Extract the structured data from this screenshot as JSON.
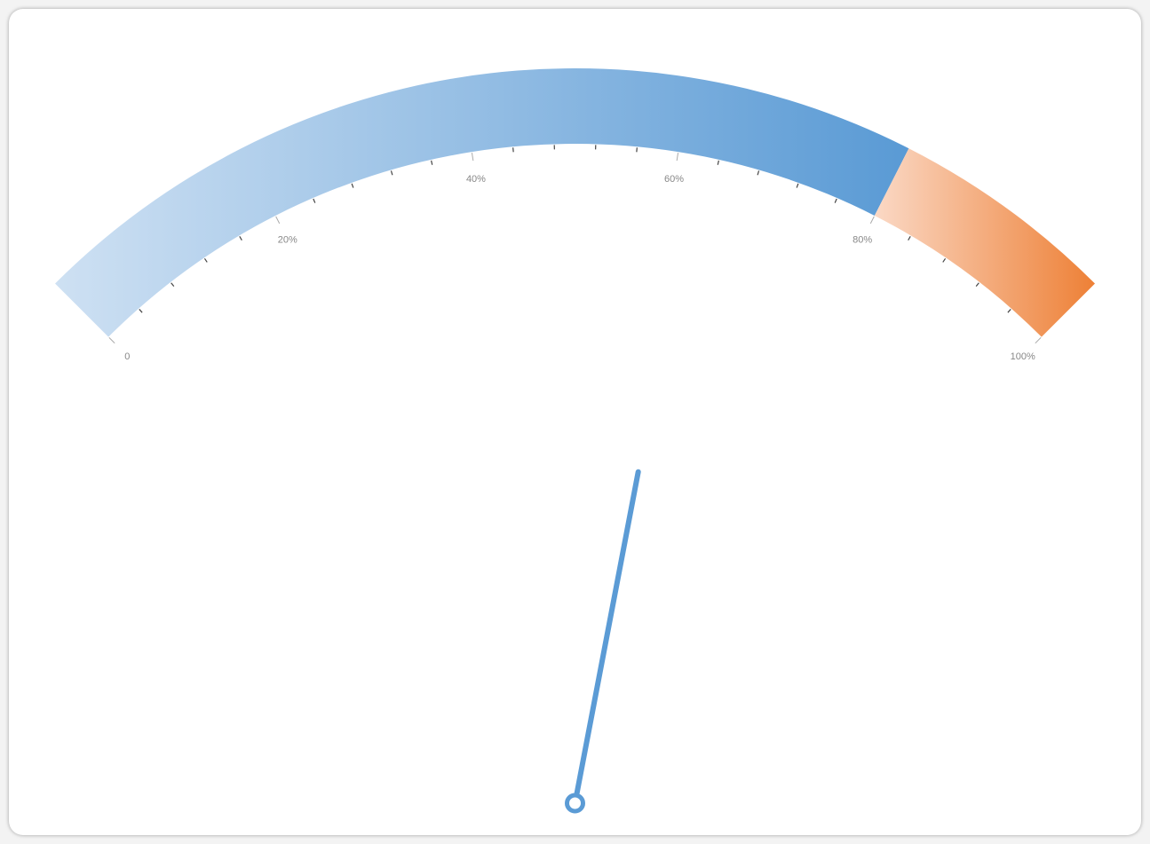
{
  "chart_data": {
    "type": "gauge",
    "min": 0,
    "max": 100,
    "value": 62,
    "ticks": [
      {
        "value": 0,
        "label": "0"
      },
      {
        "value": 20,
        "label": "20%"
      },
      {
        "value": 40,
        "label": "40%"
      },
      {
        "value": 60,
        "label": "60%"
      },
      {
        "value": 80,
        "label": "80%"
      },
      {
        "value": 100,
        "label": "100%"
      }
    ],
    "minor_ticks_per_interval": 4,
    "bands": [
      {
        "from": 0,
        "to": 80,
        "color_start": "#cfe1f3",
        "color_end": "#5b9bd5"
      },
      {
        "from": 80,
        "to": 100,
        "color_start": "#fbdccb",
        "color_end": "#ed7d31"
      }
    ],
    "needle_color": "#5b9bd5",
    "tick_color": "#444444",
    "label_color": "#888888"
  }
}
